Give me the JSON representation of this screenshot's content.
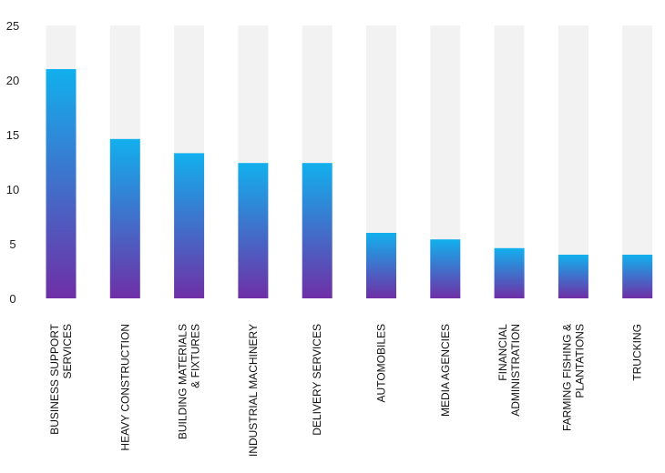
{
  "chart_data": {
    "type": "bar",
    "categories": [
      [
        "BUSINESS SUPPORT",
        "SERVICES"
      ],
      [
        "HEAVY CONSTRUCTION"
      ],
      [
        "BUILDING MATERIALS",
        "& FIXTURES"
      ],
      [
        "INDUSTRIAL MACHINERY"
      ],
      [
        "DELIVERY SERVICES"
      ],
      [
        "AUTOMOBILES"
      ],
      [
        "MEDIA AGENCIES"
      ],
      [
        "FINANCIAL",
        "ADMINISTRATION"
      ],
      [
        "FARMING FISHING &",
        "PLANTATIONS"
      ],
      [
        "TRUCKING"
      ]
    ],
    "values": [
      21.0,
      14.6,
      13.3,
      12.4,
      12.4,
      6.0,
      5.4,
      4.6,
      4.0,
      4.0
    ],
    "ylim": [
      0,
      25
    ],
    "yticks": [
      0,
      5,
      10,
      15,
      20,
      25
    ],
    "title": "",
    "xlabel": "",
    "ylabel": "",
    "grid": false,
    "background_bar_color": "#f2f2f2",
    "gradient_top_color": "#12b0ee",
    "gradient_bottom_color": "#6f2fa6"
  }
}
